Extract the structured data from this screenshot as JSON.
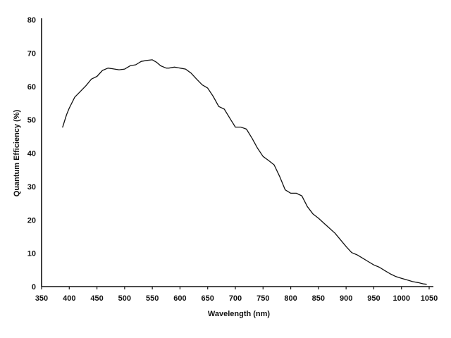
{
  "chart_data": {
    "type": "line",
    "title": "",
    "xlabel": "Wavelength (nm)",
    "ylabel": "Quantum Efficiency (%)",
    "xlim": [
      350,
      1050
    ],
    "ylim": [
      0,
      80
    ],
    "xticks": [
      350,
      400,
      450,
      500,
      550,
      600,
      650,
      700,
      750,
      800,
      850,
      900,
      950,
      1000,
      1050
    ],
    "yticks": [
      0,
      10,
      20,
      30,
      40,
      50,
      60,
      70,
      80
    ],
    "grid": false,
    "legend": "none",
    "line_color": "#111111",
    "series": [
      {
        "x": [
          388,
          395,
          400,
          410,
          420,
          430,
          440,
          450,
          460,
          470,
          478,
          490,
          500,
          510,
          520,
          530,
          540,
          550,
          558,
          565,
          575,
          580,
          590,
          600,
          610,
          620,
          630,
          640,
          650,
          660,
          670,
          680,
          690,
          700,
          710,
          720,
          730,
          740,
          750,
          760,
          770,
          780,
          790,
          800,
          810,
          820,
          830,
          840,
          850,
          860,
          870,
          880,
          890,
          900,
          910,
          920,
          930,
          940,
          950,
          960,
          970,
          980,
          990,
          1000,
          1010,
          1020,
          1030,
          1040,
          1045
        ],
        "y": [
          47.8,
          51.5,
          53.5,
          56.8,
          58.5,
          60.2,
          62.2,
          63.0,
          64.8,
          65.5,
          65.3,
          65.0,
          65.2,
          66.2,
          66.5,
          67.5,
          67.8,
          68.0,
          67.2,
          66.2,
          65.5,
          65.5,
          65.8,
          65.5,
          65.2,
          64.0,
          62.2,
          60.5,
          59.5,
          57.0,
          54.0,
          53.2,
          50.5,
          47.8,
          47.8,
          47.2,
          44.5,
          41.5,
          39.0,
          37.8,
          36.5,
          33.0,
          29.0,
          28.0,
          28.0,
          27.2,
          24.0,
          21.8,
          20.5,
          19.0,
          17.5,
          16.0,
          14.0,
          12.0,
          10.2,
          9.5,
          8.5,
          7.5,
          6.5,
          5.8,
          4.8,
          3.8,
          3.0,
          2.5,
          2.0,
          1.5,
          1.2,
          0.8,
          0.7
        ]
      }
    ]
  }
}
